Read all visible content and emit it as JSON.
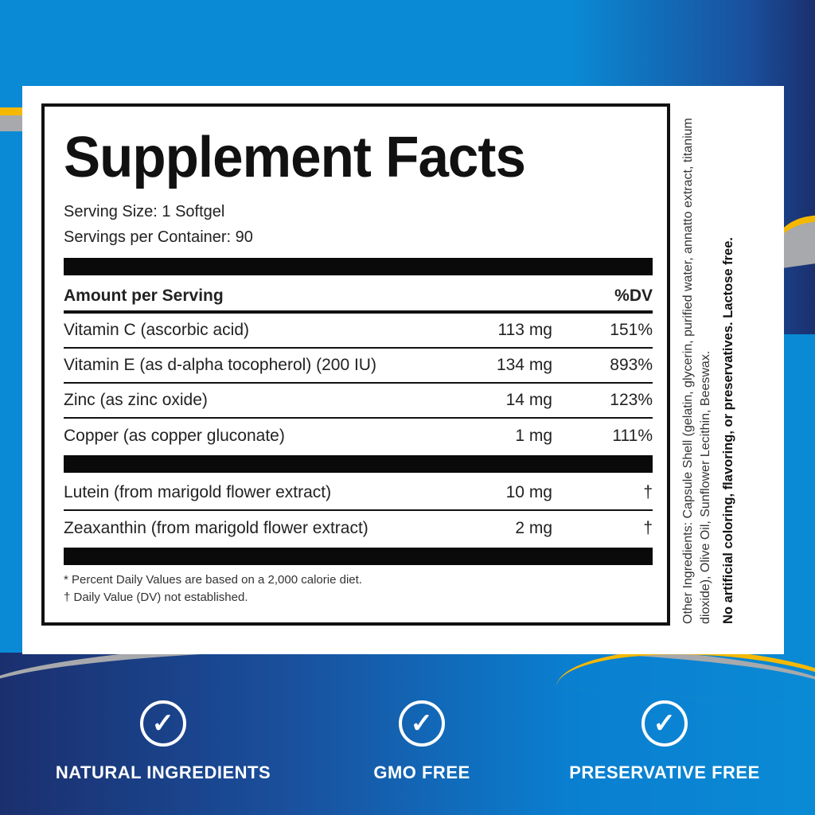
{
  "title": "Supplement Facts",
  "serving_size": "Serving Size: 1 Softgel",
  "servings_per_container": "Servings per Container: 90",
  "header": {
    "amount": "Amount per Serving",
    "dv": "%DV"
  },
  "nutrients": [
    {
      "name": "Vitamin C (ascorbic acid)",
      "amount": "113 mg",
      "dv": "151%"
    },
    {
      "name": "Vitamin E (as d-alpha tocopherol) (200 IU)",
      "amount": "134 mg",
      "dv": "893%"
    },
    {
      "name": "Zinc (as zinc oxide)",
      "amount": "14 mg",
      "dv": "123%"
    },
    {
      "name": "Copper (as copper gluconate)",
      "amount": "1 mg",
      "dv": "111%"
    }
  ],
  "others": [
    {
      "name": "Lutein (from marigold flower extract)",
      "amount": "10 mg",
      "dv": "†"
    },
    {
      "name": "Zeaxanthin (from marigold flower extract)",
      "amount": "2 mg",
      "dv": "†"
    }
  ],
  "footnotes": [
    "* Percent Daily Values are based on a 2,000 calorie diet.",
    "† Daily Value (DV) not established."
  ],
  "other_ingredients": "Other Ingredients: Capsule Shell (gelatin, glycerin, purified water, annatto extract, titanium dioxide), Olive Oil, Sunflower Lecithin, Beeswax.",
  "disclaimer": "No artificial coloring, flavoring, or preservatives. Lactose free.",
  "badges": [
    {
      "label": "NATURAL INGREDIENTS",
      "icon": "check-circle-icon"
    },
    {
      "label": "GMO FREE",
      "icon": "check-circle-icon"
    },
    {
      "label": "PRESERVATIVE FREE",
      "icon": "check-circle-icon"
    }
  ],
  "colors": {
    "blue": "#0a8ad4",
    "navy": "#1b2f6e",
    "yellow": "#f5b800",
    "gray": "#a7a9ac"
  }
}
